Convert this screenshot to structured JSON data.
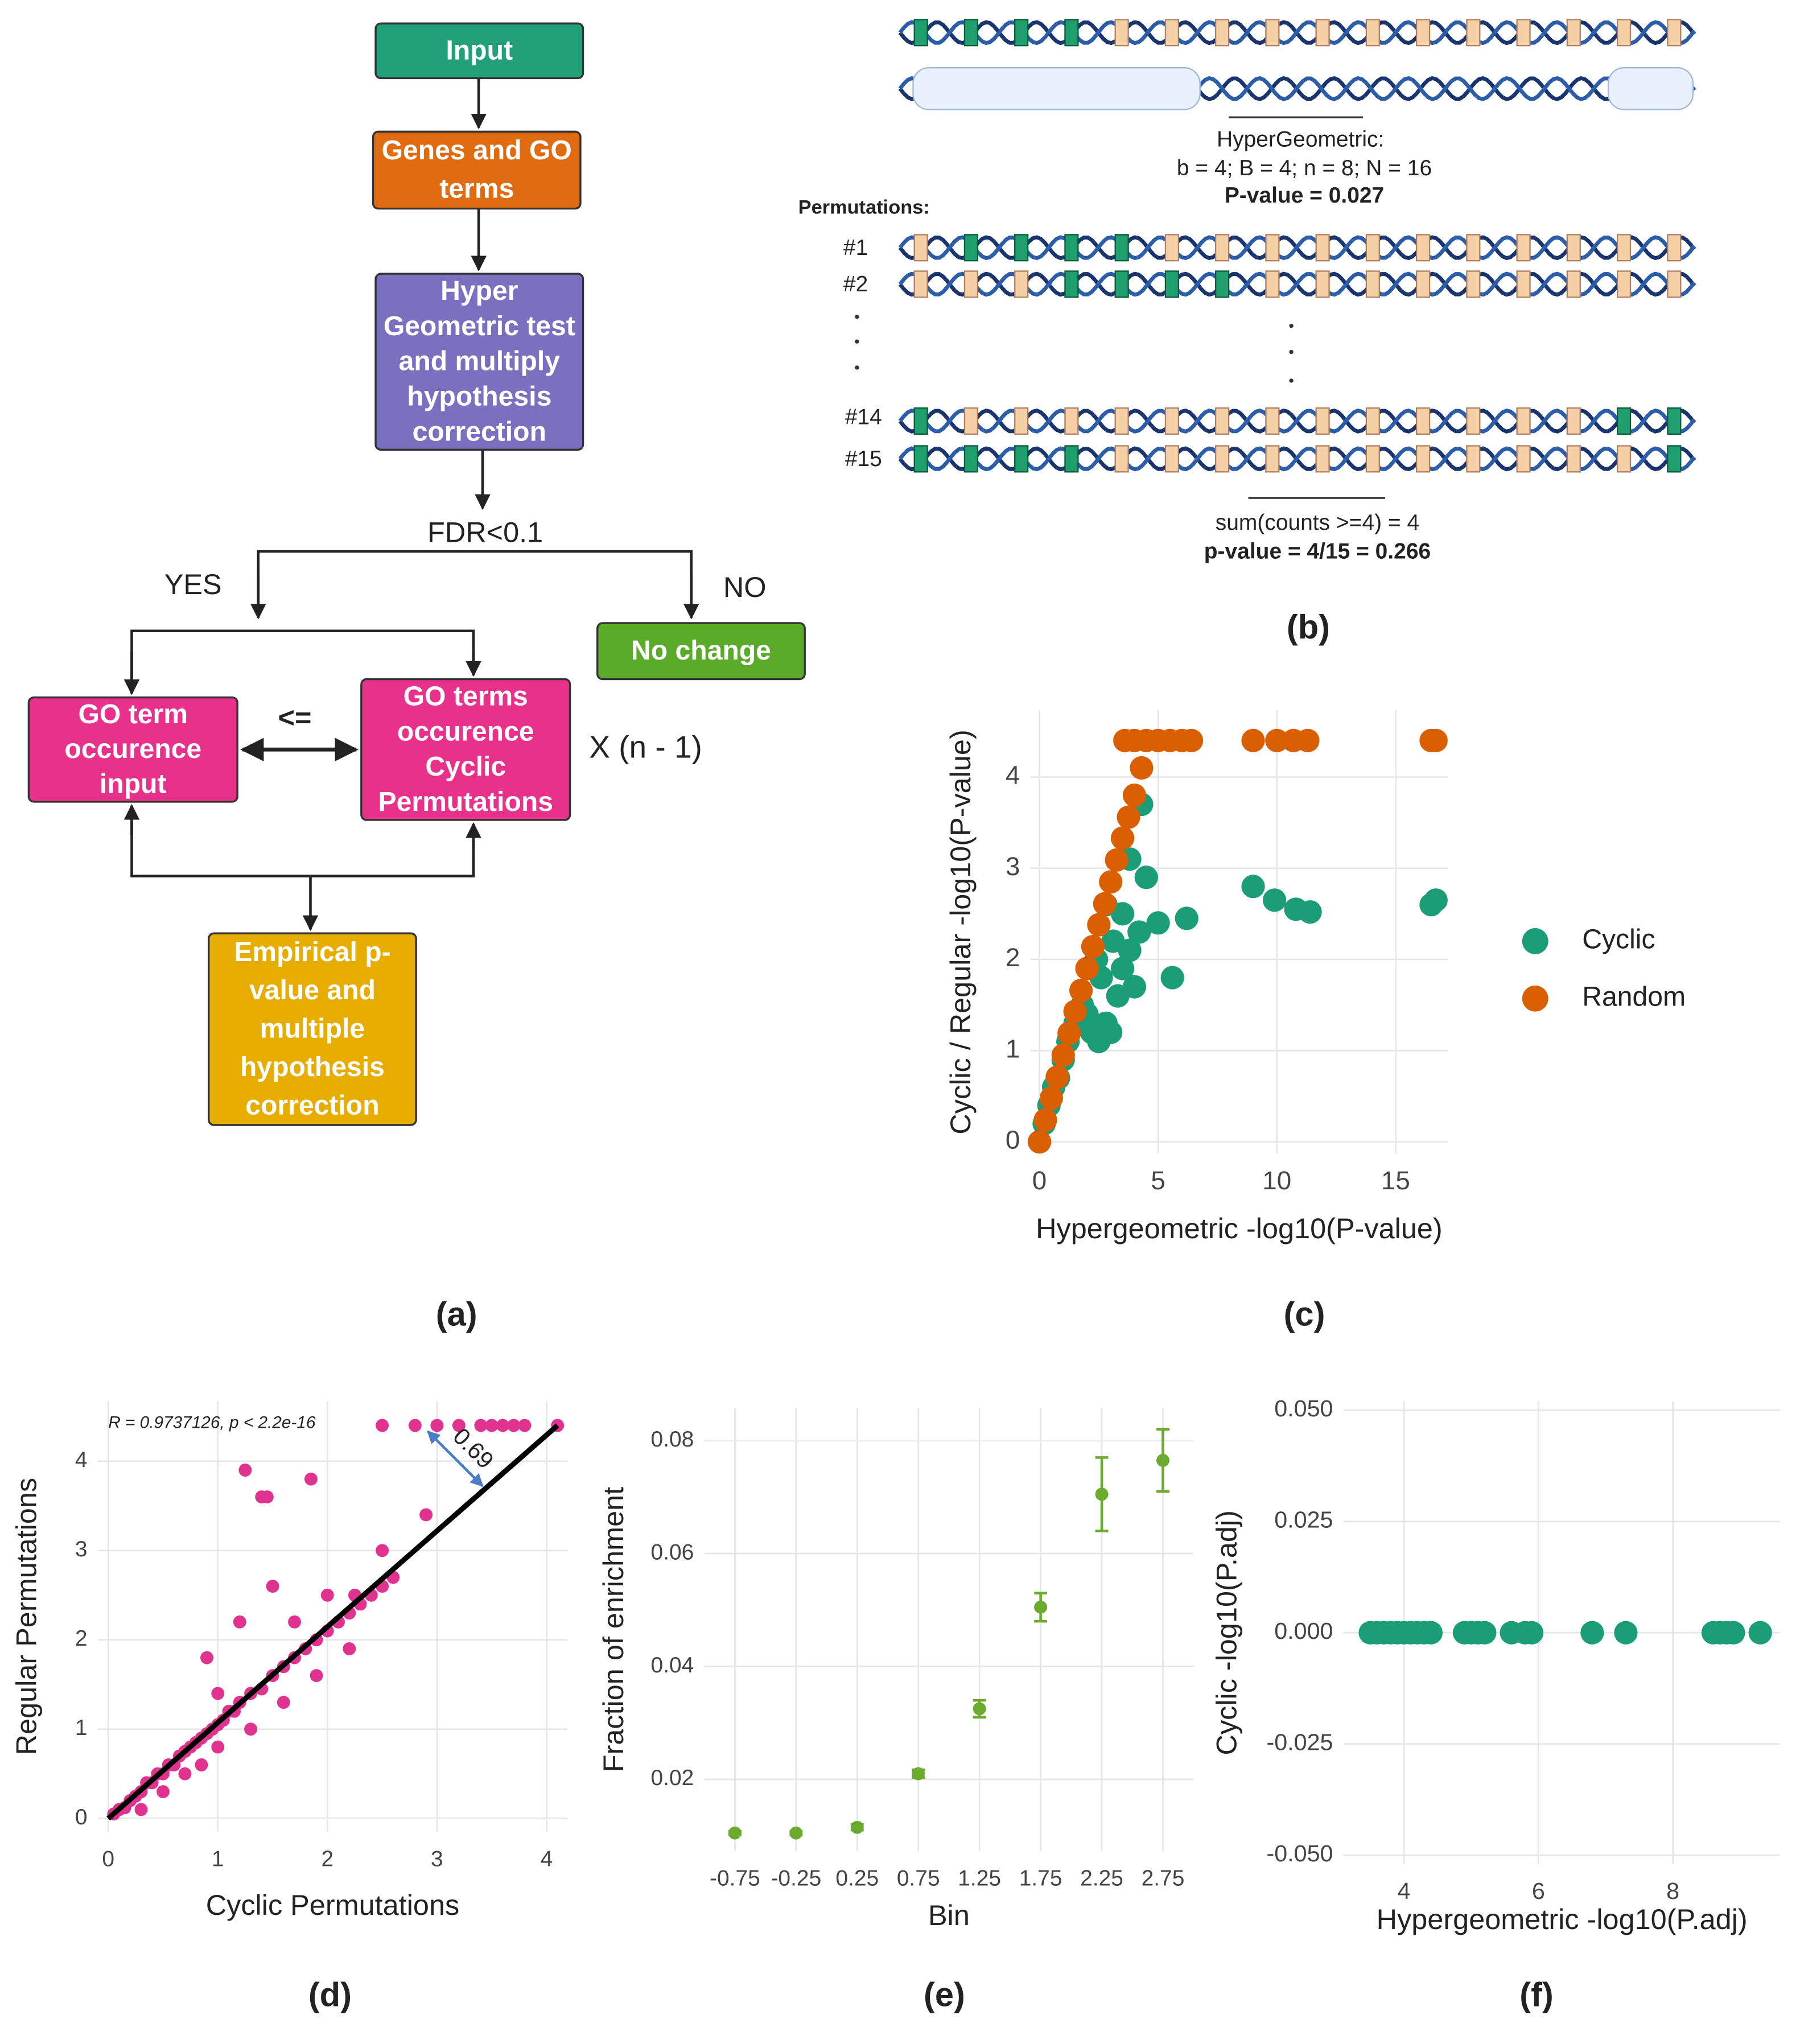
{
  "flowchart": {
    "nodes": [
      {
        "lines": [
          "Input"
        ],
        "color": "#22a07a"
      },
      {
        "lines": [
          "Genes and GO",
          "terms"
        ],
        "color": "#e06b10"
      },
      {
        "lines": [
          "Hyper",
          "Geometric test",
          "and multiply",
          "hypothesis",
          "correction"
        ],
        "color": "#7b6fc0"
      },
      {
        "lines": [
          "No change"
        ],
        "color": "#5aab2a"
      },
      {
        "lines": [
          "GO term",
          "occurence",
          "input"
        ],
        "color": "#e8318a"
      },
      {
        "lines": [
          "GO terms",
          "occurence",
          "Cyclic",
          "Permutations"
        ],
        "color": "#e8318a"
      },
      {
        "lines": [
          "Empirical p-",
          "value and",
          "multiple",
          "hypothesis",
          "correction"
        ],
        "color": "#e6ac00"
      }
    ],
    "condition": "FDR<0.1",
    "yes": "YES",
    "no": "NO",
    "compare": "<=",
    "repeat": "X (n - 1)",
    "caption": "(a)"
  },
  "permutation_panel": {
    "hypergeometric_title": "HyperGeometric:",
    "hypergeometric_params": "b = 4; B = 4; n = 8; N = 16",
    "hypergeometric_pvalue": "P-value = 0.027",
    "permutations_title": "Permutations:",
    "row_labels": [
      "#1",
      "#2",
      "#14",
      "#15"
    ],
    "empirical_sum": "sum(counts >=4) = 4",
    "empirical_pvalue": "p-value = 4/15 = 0.266",
    "caption": "(b)"
  },
  "chart_data": [
    {
      "type": "scatter",
      "caption": "(c)",
      "xlabel": "Hypergeometric -log10(P-value)",
      "ylabel": "Cyclic / Regular -log10(P-value)",
      "xlim": [
        -0.38,
        17.2
      ],
      "ylim": [
        -0.13,
        4.73
      ],
      "xticks": [
        0,
        5,
        10,
        15
      ],
      "yticks": [
        0,
        1,
        2,
        3,
        4
      ],
      "grid": true,
      "legend": "right",
      "marker_size": 9,
      "series": [
        {
          "name": "Cyclic",
          "color": "#1b9e77",
          "x": [
            0,
            0.2,
            0.4,
            0.6,
            0.8,
            1,
            1.2,
            1.5,
            1.8,
            2,
            2.2,
            2.5,
            2.8,
            3,
            3.3,
            2.4,
            2.6,
            3.1,
            3.5,
            3.8,
            4.2,
            4,
            5,
            5.6,
            6.2,
            2.8,
            3.5,
            4.5,
            9,
            9.9,
            10.8,
            11.4,
            16.5,
            16.7,
            3.8,
            4.3
          ],
          "values": [
            0,
            0.2,
            0.4,
            0.6,
            0.7,
            0.9,
            1.1,
            1.3,
            1.5,
            1.4,
            1.2,
            1.1,
            1.3,
            1.2,
            1.6,
            2.0,
            1.8,
            2.2,
            1.9,
            2.1,
            2.3,
            1.7,
            2.4,
            1.8,
            2.45,
            2.6,
            2.5,
            2.9,
            2.8,
            2.65,
            2.55,
            2.52,
            2.6,
            2.65,
            3.1,
            3.7
          ]
        },
        {
          "name": "Random",
          "color": "#d95f02",
          "x": [
            0,
            0.25,
            0.5,
            0.75,
            1,
            1.25,
            1.5,
            1.75,
            2,
            2.25,
            2.5,
            2.75,
            3,
            3.25,
            3.5,
            3.75,
            4,
            4.3,
            3.6,
            4,
            4.5,
            5,
            5.5,
            6,
            6.4,
            9,
            10,
            10.7,
            11.3,
            16.5,
            16.7
          ],
          "values": [
            0,
            0.24,
            0.48,
            0.71,
            0.95,
            1.19,
            1.43,
            1.66,
            1.9,
            2.14,
            2.38,
            2.61,
            2.85,
            3.09,
            3.33,
            3.56,
            3.8,
            4.1,
            4.4,
            4.4,
            4.4,
            4.4,
            4.4,
            4.4,
            4.4,
            4.4,
            4.4,
            4.4,
            4.4,
            4.4,
            4.4
          ]
        }
      ]
    },
    {
      "type": "scatter",
      "caption": "(d)",
      "xlabel": "Cyclic Permutations",
      "ylabel": "Regular Permutations",
      "xlim": [
        -0.095,
        4.19
      ],
      "ylim": [
        -0.146,
        4.67
      ],
      "xticks": [
        0,
        1,
        2,
        3,
        4
      ],
      "yticks": [
        0,
        1,
        2,
        3,
        4
      ],
      "grid": true,
      "marker_size": 5,
      "annotations": [
        "R = 0.9737126, p < 2.2e-16",
        "0.69"
      ],
      "trend_line": {
        "x": [
          0,
          4.1
        ],
        "y": [
          0,
          4.4
        ]
      },
      "series": [
        {
          "color": "#e0338f",
          "x": [
            0.05,
            0.1,
            0.15,
            0.2,
            0.25,
            0.3,
            0.35,
            0.4,
            0.45,
            0.5,
            0.55,
            0.6,
            0.65,
            0.7,
            0.75,
            0.8,
            0.85,
            0.9,
            0.95,
            1.0,
            1.05,
            1.1,
            1.15,
            1.2,
            1.3,
            1.4,
            1.5,
            1.6,
            1.7,
            1.8,
            1.9,
            2.0,
            2.1,
            2.2,
            2.3,
            2.4,
            2.5,
            2.6,
            0.3,
            0.5,
            0.7,
            0.85,
            0.9,
            1.0,
            1.2,
            1.5,
            1.7,
            2.0,
            1.25,
            1.45,
            1.85,
            2.25,
            1.4,
            2.5,
            2.9,
            2.5,
            2.8,
            3.0,
            3.2,
            3.4,
            3.5,
            3.6,
            3.7,
            3.8,
            4.1,
            1.0,
            1.3,
            1.6,
            1.9,
            2.2
          ],
          "values": [
            0.05,
            0.1,
            0.12,
            0.2,
            0.25,
            0.3,
            0.4,
            0.4,
            0.5,
            0.5,
            0.6,
            0.6,
            0.7,
            0.75,
            0.8,
            0.85,
            0.9,
            0.95,
            1.0,
            1.05,
            1.1,
            1.2,
            1.2,
            1.3,
            1.4,
            1.45,
            1.6,
            1.7,
            1.8,
            1.9,
            2.0,
            2.1,
            2.2,
            2.3,
            2.4,
            2.5,
            2.6,
            2.7,
            0.1,
            0.3,
            0.5,
            0.6,
            1.8,
            1.4,
            2.2,
            2.6,
            2.2,
            2.5,
            3.9,
            3.6,
            3.8,
            2.5,
            3.6,
            3.0,
            3.4,
            4.4,
            4.4,
            4.4,
            4.4,
            4.4,
            4.4,
            4.4,
            4.4,
            4.4,
            4.4,
            0.8,
            1.0,
            1.3,
            1.6,
            1.9
          ]
        }
      ]
    },
    {
      "type": "errorbar",
      "caption": "(e)",
      "xlabel": "Bin",
      "ylabel": "Fraction of enrichment",
      "categories": [
        "-0.75",
        "-0.25",
        "0.25",
        "0.75",
        "1.25",
        "1.75",
        "2.25",
        "2.75"
      ],
      "values": [
        0.0105,
        0.0105,
        0.0115,
        0.021,
        0.0325,
        0.0505,
        0.0705,
        0.0765
      ],
      "errors": [
        0.0003,
        0.0003,
        0.0005,
        0.0007,
        0.0015,
        0.0025,
        0.0065,
        0.0055
      ],
      "color": "#6aab2e",
      "ylim": [
        0.0073,
        0.0858
      ],
      "yticks": [
        0.02,
        0.04,
        0.06,
        0.08
      ],
      "grid": true,
      "marker_size": 5
    },
    {
      "type": "scatter",
      "caption": "(f)",
      "xlabel": "Hypergeometric -log10(P.adj)",
      "ylabel": "Cyclic -log10(P.adj)",
      "xlim": [
        3.1,
        9.6
      ],
      "ylim": [
        -0.052,
        0.052
      ],
      "xticks": [
        4,
        6,
        8
      ],
      "yticks": [
        {
          "value": -0.05,
          "label": "-0.050"
        },
        {
          "value": -0.025,
          "label": "-0.025"
        },
        {
          "value": 0,
          "label": "0.000"
        },
        {
          "value": 0.025,
          "label": "0.025"
        },
        {
          "value": 0.05,
          "label": "0.050"
        }
      ],
      "grid": true,
      "marker_size": 9,
      "series": [
        {
          "color": "#1b9e77",
          "x": [
            3.5,
            3.6,
            3.7,
            3.8,
            3.9,
            4.0,
            4.1,
            4.2,
            4.3,
            4.4,
            4.9,
            5.0,
            5.1,
            5.2,
            5.6,
            5.8,
            5.9,
            6.8,
            7.3,
            8.6,
            8.7,
            8.8,
            8.9,
            9.3
          ],
          "values": [
            0,
            0,
            0,
            0,
            0,
            0,
            0,
            0,
            0,
            0,
            0,
            0,
            0,
            0,
            0,
            0,
            0,
            0,
            0,
            0,
            0,
            0,
            0,
            0
          ]
        }
      ]
    }
  ]
}
